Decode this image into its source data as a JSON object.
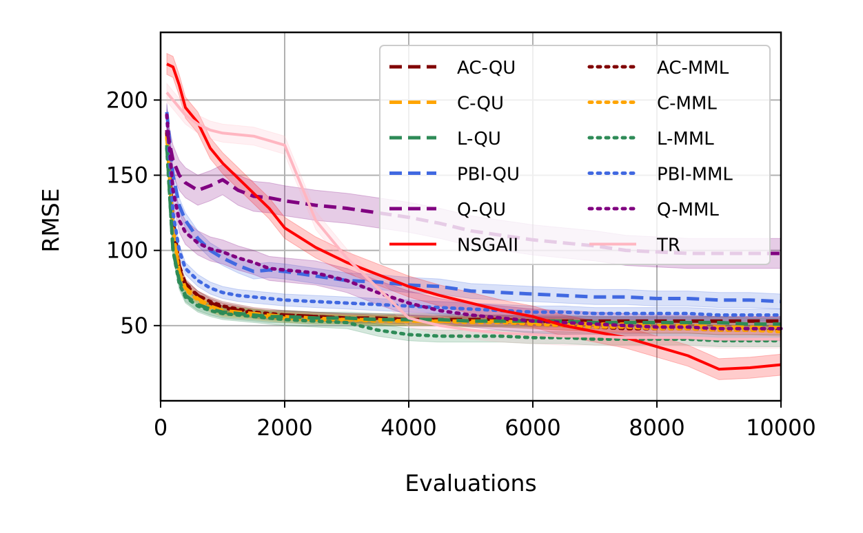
{
  "chart_data": {
    "type": "line",
    "xlabel": "Evaluations",
    "ylabel": "RMSE",
    "xlim": [
      0,
      10000
    ],
    "ylim": [
      0,
      245
    ],
    "xticks": [
      0,
      2000,
      4000,
      6000,
      8000,
      10000
    ],
    "yticks": [
      50,
      100,
      150,
      200
    ],
    "grid": true,
    "legend_position": "top-right",
    "legend_columns": 2,
    "x": [
      100,
      200,
      300,
      400,
      600,
      800,
      1000,
      1250,
      1500,
      1750,
      2000,
      2500,
      3000,
      3500,
      4000,
      4500,
      5000,
      5500,
      6000,
      6500,
      7000,
      7500,
      8000,
      8500,
      9000,
      9500,
      10000
    ],
    "series": [
      {
        "name": "AC-QU",
        "color": "#800000",
        "dash": "dashed",
        "band": 3,
        "values": [
          180,
          120,
          90,
          78,
          70,
          65,
          62,
          60,
          58,
          57,
          57,
          56,
          55,
          55,
          54,
          54,
          54,
          54,
          53,
          53,
          53,
          53,
          53,
          53,
          53,
          53,
          53
        ]
      },
      {
        "name": "AC-MML",
        "color": "#800000",
        "dash": "dotted",
        "band": 3,
        "values": [
          178,
          118,
          88,
          77,
          70,
          66,
          63,
          61,
          59,
          58,
          57,
          56,
          55,
          54,
          54,
          53,
          53,
          52,
          51,
          50,
          49,
          48,
          48,
          48,
          47,
          47,
          47
        ]
      },
      {
        "name": "C-QU",
        "color": "#ffa500",
        "dash": "dashed",
        "band": 3,
        "values": [
          176,
          115,
          86,
          75,
          68,
          63,
          60,
          59,
          58,
          57,
          56,
          55,
          54,
          54,
          53,
          53,
          53,
          53,
          52,
          52,
          51,
          51,
          50,
          50,
          49,
          49,
          49
        ]
      },
      {
        "name": "C-MML",
        "color": "#ffa500",
        "dash": "dotted",
        "band": 3,
        "values": [
          175,
          114,
          85,
          74,
          67,
          62,
          59,
          58,
          57,
          56,
          55,
          54,
          54,
          53,
          53,
          53,
          52,
          52,
          51,
          50,
          49,
          49,
          48,
          48,
          47,
          47,
          46
        ]
      },
      {
        "name": "L-QU",
        "color": "#2e8b57",
        "dash": "dashed",
        "band": 4,
        "values": [
          170,
          100,
          80,
          70,
          64,
          61,
          59,
          58,
          57,
          56,
          56,
          55,
          55,
          54,
          54,
          54,
          53,
          53,
          53,
          53,
          52,
          52,
          52,
          52,
          52,
          51,
          51
        ]
      },
      {
        "name": "L-MML",
        "color": "#2e8b57",
        "dash": "dotted",
        "band": 4,
        "values": [
          168,
          100,
          78,
          69,
          63,
          60,
          58,
          57,
          56,
          55,
          54,
          53,
          52,
          47,
          44,
          43,
          43,
          43,
          42,
          42,
          41,
          41,
          41,
          41,
          40,
          40,
          40
        ]
      },
      {
        "name": "PBI-QU",
        "color": "#4169e1",
        "dash": "dashed",
        "band": 5,
        "values": [
          192,
          150,
          130,
          120,
          108,
          100,
          95,
          90,
          86,
          87,
          86,
          83,
          80,
          79,
          77,
          76,
          73,
          72,
          71,
          70,
          69,
          69,
          68,
          68,
          67,
          67,
          66
        ]
      },
      {
        "name": "PBI-MML",
        "color": "#4169e1",
        "dash": "dotted",
        "band": 4,
        "values": [
          190,
          125,
          100,
          88,
          80,
          75,
          72,
          70,
          69,
          68,
          67,
          66,
          65,
          64,
          63,
          62,
          61,
          60,
          59,
          59,
          58,
          58,
          58,
          58,
          57,
          57,
          57
        ]
      },
      {
        "name": "Q-QU",
        "color": "#800080",
        "dash": "dashed",
        "band": 10,
        "values": [
          180,
          160,
          150,
          145,
          140,
          143,
          147,
          140,
          136,
          135,
          133,
          130,
          128,
          125,
          122,
          118,
          113,
          110,
          107,
          105,
          103,
          100,
          99,
          98,
          98,
          98,
          98
        ]
      },
      {
        "name": "Q-MML",
        "color": "#800080",
        "dash": "dotted",
        "band": 8,
        "values": [
          190,
          140,
          120,
          112,
          105,
          101,
          99,
          95,
          92,
          88,
          87,
          85,
          80,
          72,
          65,
          60,
          57,
          55,
          53,
          52,
          51,
          50,
          49,
          49,
          48,
          48,
          48
        ]
      },
      {
        "name": "NSGAII",
        "color": "#ff0000",
        "dash": "solid",
        "band": 7,
        "values": [
          224,
          222,
          210,
          195,
          185,
          168,
          158,
          148,
          138,
          128,
          115,
          102,
          92,
          84,
          76,
          70,
          65,
          60,
          56,
          50,
          46,
          42,
          36,
          30,
          21,
          22,
          24
        ]
      },
      {
        "name": "TR",
        "color": "#ffb6c1",
        "dash": "solid",
        "band": 6,
        "values": [
          205,
          200,
          195,
          190,
          184,
          180,
          178,
          177,
          176,
          173,
          170,
          120,
          95,
          75,
          55,
          50,
          47,
          45,
          44,
          43,
          43,
          42,
          42,
          42,
          41,
          41,
          41
        ]
      }
    ]
  }
}
